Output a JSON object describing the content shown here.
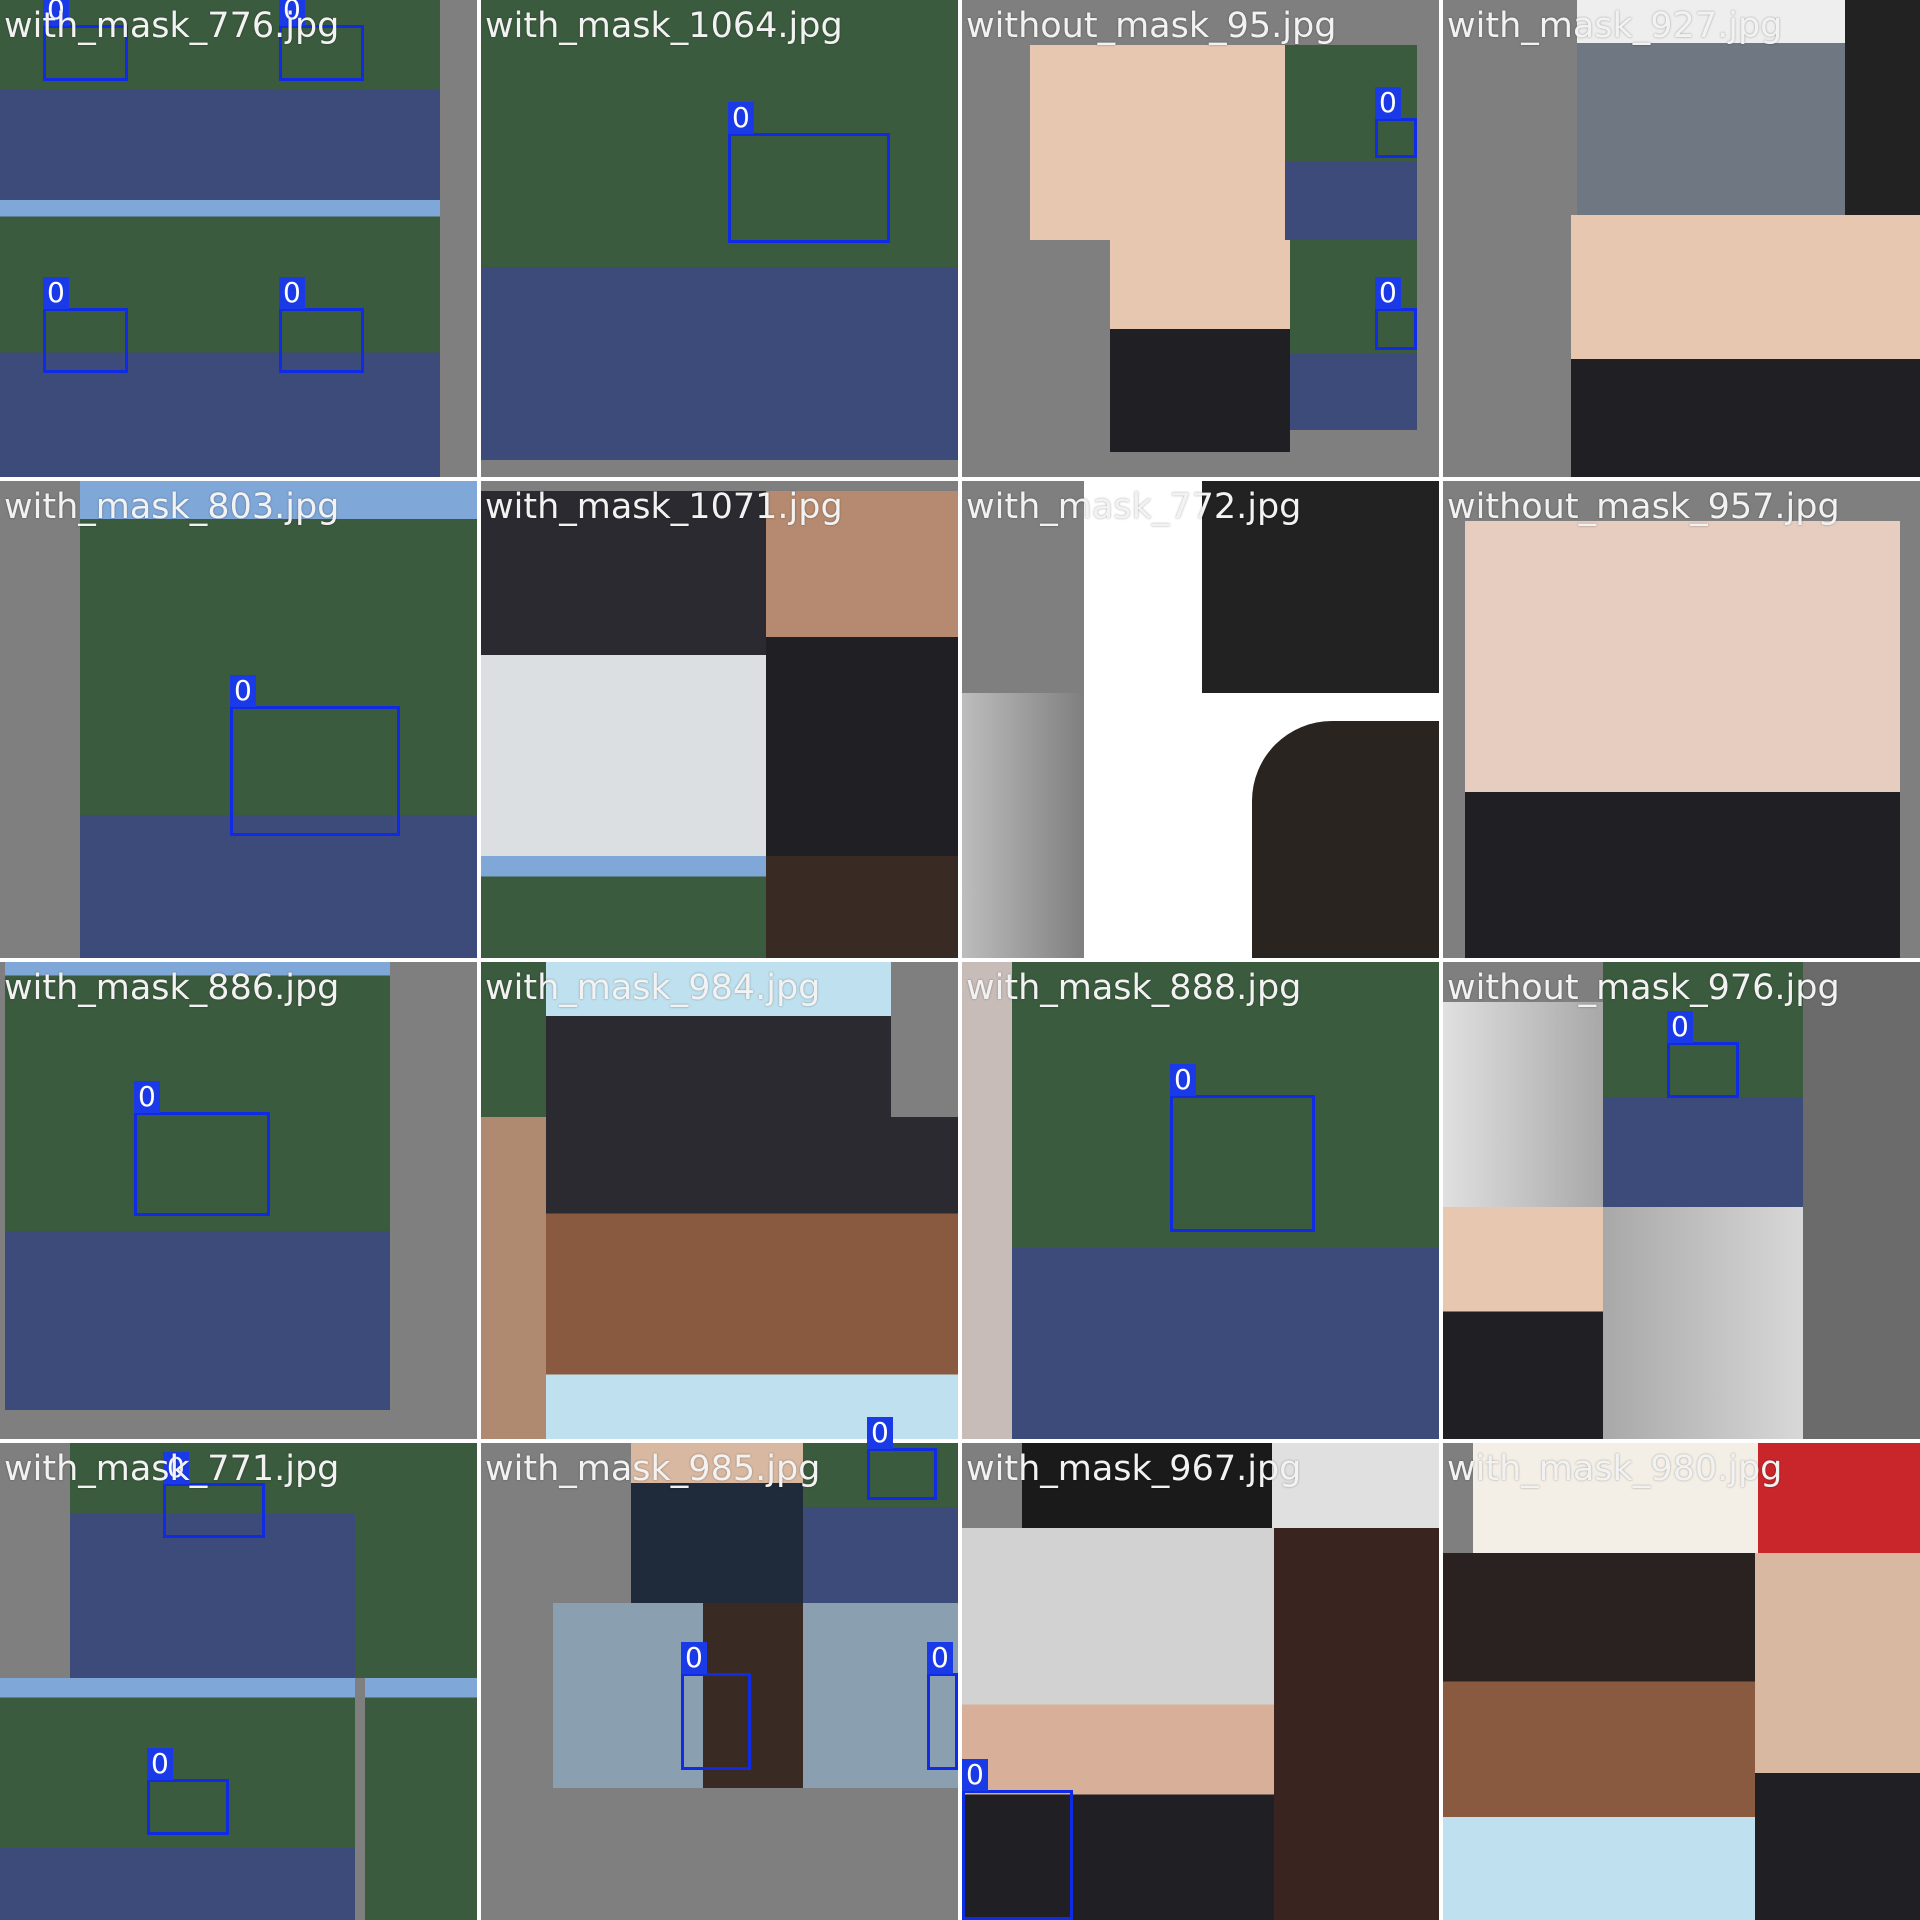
{
  "colors": {
    "background_gray": "#7f7f7f",
    "label_text": "#f2f2f2",
    "bbox": "#0f2be6",
    "building_green": "#3b5b3e",
    "window_frame": "#d8a860",
    "jacket_blue": "#3d4b7a",
    "backpack_teal": "#3aa8b8",
    "dark_mask": "#1f1f24",
    "surgical_mask": "#bfe0ee",
    "skin_light": "#e8c7b0",
    "skin_dark": "#8a5a40"
  },
  "tiles": [
    {
      "label": "with_mask_776.jpg",
      "boxes": [
        "0",
        "0",
        "0",
        "0"
      ]
    },
    {
      "label": "with_mask_1064.jpg",
      "boxes": [
        "0"
      ]
    },
    {
      "label": "without_mask_95.jpg",
      "boxes": [
        "0",
        "0"
      ]
    },
    {
      "label": "with_mask_927.jpg",
      "boxes": []
    },
    {
      "label": "with_mask_803.jpg",
      "boxes": [
        "0"
      ]
    },
    {
      "label": "with_mask_1071.jpg",
      "boxes": []
    },
    {
      "label": "with_mask_772.jpg",
      "boxes": []
    },
    {
      "label": "without_mask_957.jpg",
      "boxes": []
    },
    {
      "label": "with_mask_886.jpg",
      "boxes": [
        "0"
      ]
    },
    {
      "label": "with_mask_984.jpg",
      "boxes": []
    },
    {
      "label": "with_mask_888.jpg",
      "boxes": [
        "0"
      ]
    },
    {
      "label": "without_mask_976.jpg",
      "boxes": [
        "0"
      ]
    },
    {
      "label": "with_mask_771.jpg",
      "boxes": [
        "0",
        "0"
      ]
    },
    {
      "label": "with_mask_985.jpg",
      "boxes": [
        "0",
        "0",
        "0"
      ]
    },
    {
      "label": "with_mask_967.jpg",
      "boxes": [
        "0"
      ]
    },
    {
      "label": "with_mask_980.jpg",
      "boxes": []
    }
  ]
}
